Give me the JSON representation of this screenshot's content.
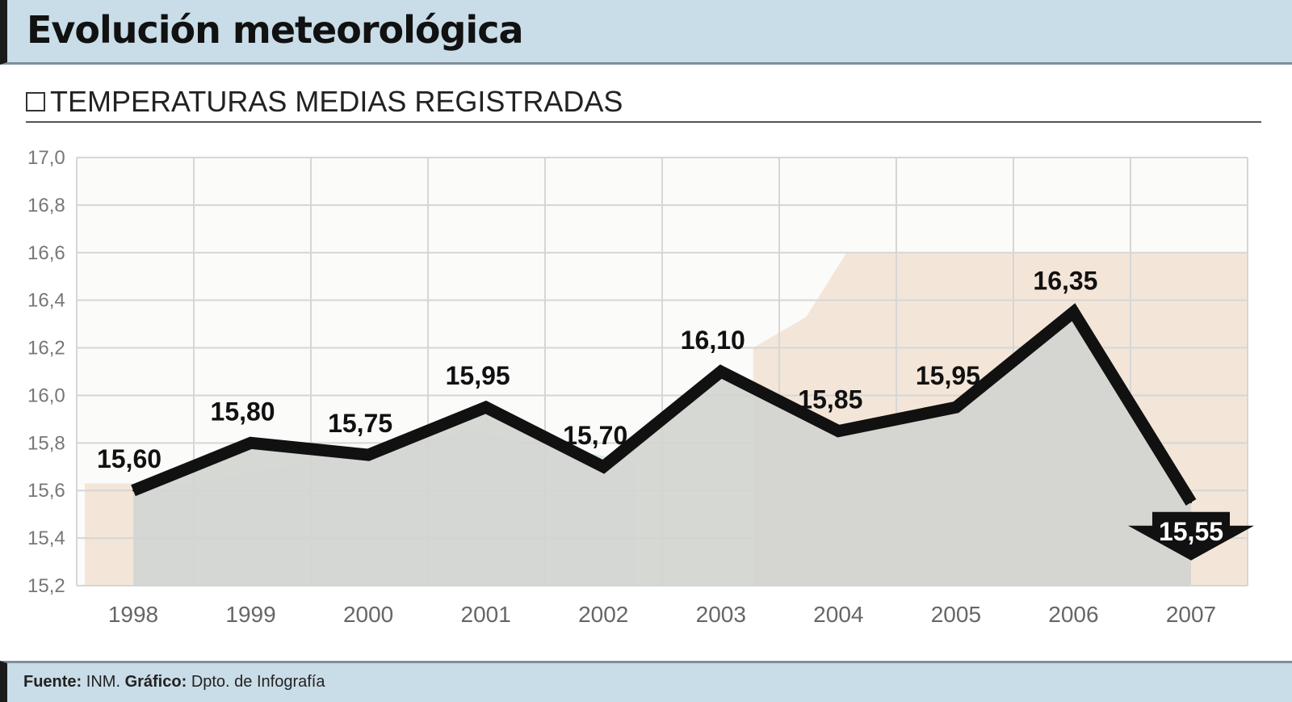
{
  "header": {
    "title": "Evolución meteorológica"
  },
  "subtitle": "TEMPERATURAS MEDIAS REGISTRADAS",
  "footer": {
    "source_label": "Fuente:",
    "source_value": "INM.",
    "graphics_label": "Gráfico:",
    "graphics_value": "Dpto. de Infografía"
  },
  "chart_data": {
    "type": "line",
    "categories": [
      "1998",
      "1999",
      "2000",
      "2001",
      "2002",
      "2003",
      "2004",
      "2005",
      "2006",
      "2007"
    ],
    "values": [
      15.6,
      15.8,
      15.75,
      15.95,
      15.7,
      16.1,
      15.85,
      15.95,
      16.35,
      15.55
    ],
    "data_labels": [
      "15,60",
      "15,80",
      "15,75",
      "15,95",
      "15,70",
      "16,10",
      "15,85",
      "15,95",
      "16,35",
      "15,55"
    ],
    "y_ticks": [
      17.0,
      16.8,
      16.6,
      16.4,
      16.2,
      16.0,
      15.8,
      15.6,
      15.4,
      15.2
    ],
    "y_tick_labels": [
      "17,0",
      "16,8",
      "16,6",
      "16,4",
      "16,2",
      "16,0",
      "15,8",
      "15,6",
      "15,4",
      "15,2"
    ],
    "ylim": [
      15.2,
      17.0
    ],
    "grid": true,
    "colors": {
      "line": "#111111",
      "area": "#d3d5d0",
      "background_tan": "#f3e6d8",
      "background_blue": "#dce8ec",
      "grid": "#d6d6d6"
    }
  }
}
